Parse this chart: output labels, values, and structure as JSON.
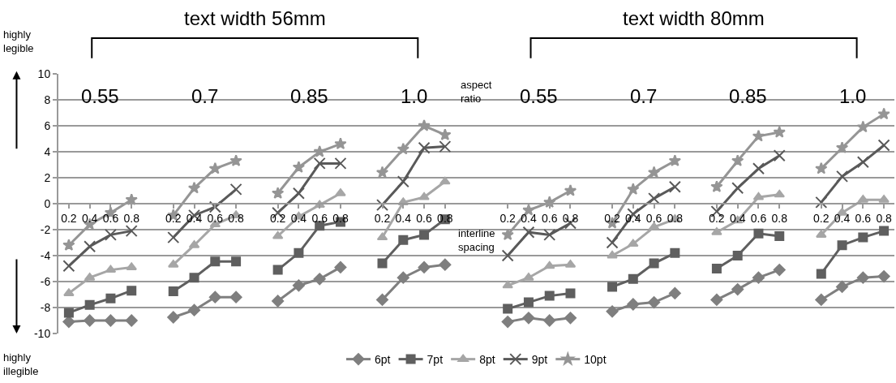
{
  "chart_data": {
    "type": "line",
    "categories": [
      "0.2",
      "0.4",
      "0.6",
      "0.8",
      null,
      "0.2",
      "0.4",
      "0.6",
      "0.8",
      null,
      "0.2",
      "0.4",
      "0.6",
      "0.8",
      null,
      "0.2",
      "0.4",
      "0.6",
      "0.8",
      null,
      null,
      "0.2",
      "0.4",
      "0.6",
      "0.8",
      null,
      "0.2",
      "0.4",
      "0.6",
      "0.8",
      null,
      "0.2",
      "0.4",
      "0.6",
      "0.8",
      null,
      "0.2",
      "0.4",
      "0.6",
      "0.8"
    ],
    "series": [
      {
        "name": "6pt",
        "color": "#7f7f7f",
        "marker": "diamond",
        "values": [
          -9.1,
          -9.0,
          -9.0,
          -9.0,
          null,
          -8.75,
          -8.2,
          -7.2,
          -7.2,
          null,
          -7.5,
          -6.3,
          -5.8,
          -4.9,
          null,
          -7.4,
          -5.7,
          -4.9,
          -4.7,
          null,
          null,
          -9.1,
          -8.8,
          -9.0,
          -8.8,
          null,
          -8.3,
          -7.75,
          -7.6,
          -6.9,
          null,
          -7.4,
          -6.6,
          -5.7,
          -5.1,
          null,
          -7.4,
          -6.4,
          -5.7,
          -5.6
        ]
      },
      {
        "name": "7pt",
        "color": "#5f5f5f",
        "marker": "square",
        "values": [
          -8.4,
          -7.8,
          -7.3,
          -6.7,
          null,
          -6.75,
          -5.7,
          -4.45,
          -4.45,
          null,
          -5.1,
          -3.8,
          -1.7,
          -1.4,
          null,
          -4.6,
          -2.8,
          -2.4,
          -1.2,
          null,
          null,
          -8.1,
          -7.6,
          -7.1,
          -6.9,
          null,
          -6.4,
          -5.8,
          -4.6,
          -3.8,
          null,
          -5.0,
          -4.0,
          -2.3,
          -2.5,
          null,
          -5.4,
          -3.2,
          -2.6,
          -2.1
        ]
      },
      {
        "name": "8pt",
        "color": "#a6a6a6",
        "marker": "triangle",
        "values": [
          -6.9,
          -5.7,
          -5.1,
          -4.9,
          null,
          -4.7,
          -3.2,
          -1.6,
          -0.9,
          null,
          -2.5,
          -1.0,
          -0.1,
          0.8,
          null,
          -2.6,
          0.1,
          0.5,
          1.7,
          null,
          null,
          -6.3,
          -5.7,
          -4.8,
          -4.7,
          null,
          -4.0,
          -3.1,
          -1.8,
          -1.2,
          null,
          -2.2,
          -1.3,
          0.5,
          0.7,
          null,
          -2.4,
          -0.7,
          0.3,
          0.3
        ]
      },
      {
        "name": "9pt",
        "color": "#595959",
        "marker": "cross",
        "values": [
          -4.8,
          -3.3,
          -2.4,
          -2.1,
          null,
          -2.6,
          -0.9,
          -0.25,
          1.1,
          null,
          -0.7,
          0.8,
          3.1,
          3.1,
          null,
          -0.1,
          1.7,
          4.3,
          4.4,
          null,
          null,
          -4.0,
          -2.2,
          -2.4,
          -1.5,
          null,
          -3.0,
          -0.8,
          0.4,
          1.3,
          null,
          -0.6,
          1.2,
          2.7,
          3.7,
          null,
          0.1,
          2.1,
          3.2,
          4.5
        ]
      },
      {
        "name": "10pt",
        "color": "#959595",
        "marker": "star",
        "values": [
          -3.2,
          -1.6,
          -0.7,
          0.3,
          null,
          -0.9,
          1.2,
          2.7,
          3.3,
          null,
          0.8,
          2.8,
          4.0,
          4.6,
          null,
          2.4,
          4.2,
          6.0,
          5.3,
          null,
          null,
          -2.4,
          -0.5,
          0.1,
          1.0,
          null,
          -1.5,
          1.1,
          2.4,
          3.3,
          null,
          1.3,
          3.3,
          5.2,
          5.5,
          null,
          2.7,
          4.3,
          5.9,
          6.9
        ]
      }
    ],
    "ylim": [
      -10,
      10
    ],
    "yticks": [
      -10,
      -8,
      -6,
      -4,
      -2,
      0,
      2,
      4,
      6,
      8,
      10
    ],
    "grid": "y",
    "legend": "bottom",
    "line_style": "solid",
    "annotations": [
      "text width 56mm",
      "text width 80mm",
      "highly legible",
      "highly illegible",
      "aspect ratio",
      "interline spacing",
      "0.55",
      "0.7",
      "0.85",
      "1.0",
      "0.55",
      "0.7",
      "0.85",
      "1.0"
    ]
  }
}
